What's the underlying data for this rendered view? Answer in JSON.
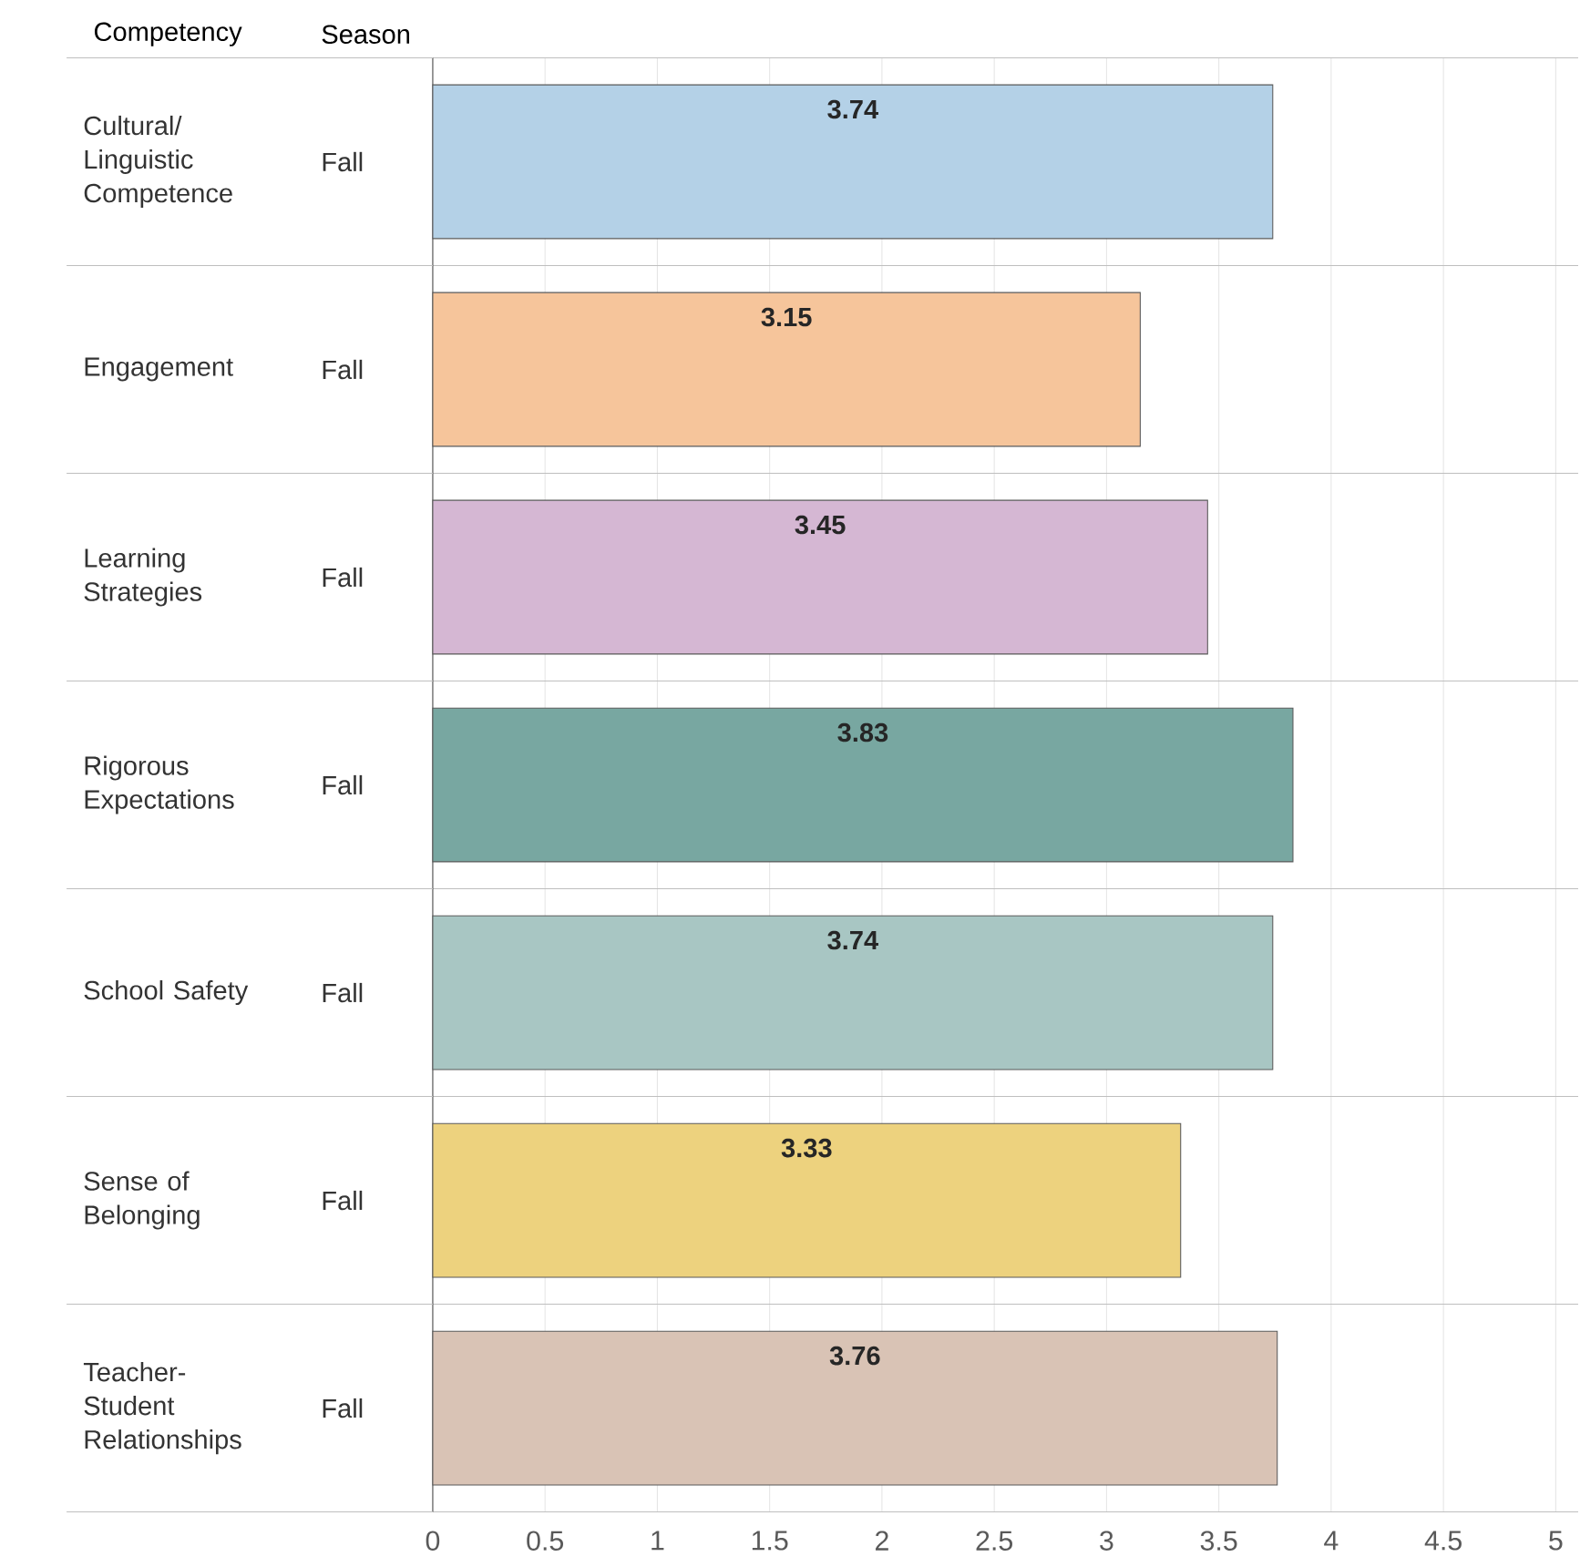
{
  "chart_data": {
    "type": "bar",
    "orientation": "horizontal",
    "ylabel": "Competency",
    "categories": [
      "Cultural/ Linguistic Competence",
      "Engagement",
      "Learning Strategies",
      "Rigorous Expectations",
      "School Safety",
      "Sense of Belonging",
      "Teacher- Student Relationships"
    ],
    "values": [
      3.74,
      3.15,
      3.45,
      3.83,
      3.74,
      3.33,
      3.76
    ],
    "colors": [
      "#b4d1e7",
      "#f6c59b",
      "#d5b7d3",
      "#78a7a1",
      "#a8c6c3",
      "#edd27e",
      "#d9c3b5"
    ],
    "xlim": [
      0,
      5.1
    ],
    "xticks": [
      0,
      0.5,
      1,
      1.5,
      2,
      2.5,
      3,
      3.5,
      4,
      4.5,
      5
    ],
    "data_labels": true,
    "grid": true,
    "annotations": [
      "Season",
      "Fall",
      "Fall",
      "Fall",
      "Fall",
      "Fall",
      "Fall",
      "Fall"
    ]
  }
}
